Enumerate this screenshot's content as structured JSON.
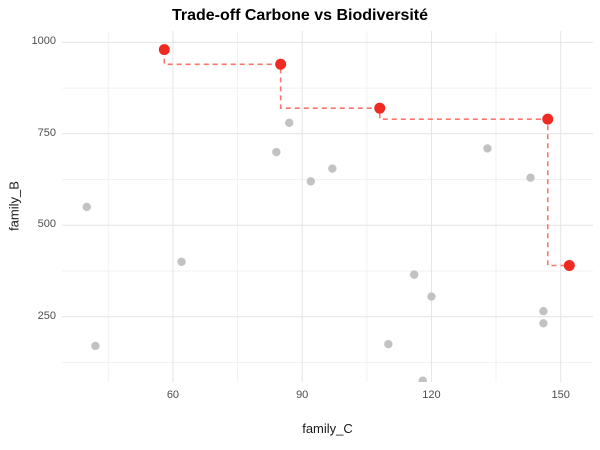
{
  "chart_data": {
    "type": "scatter",
    "title": "Trade-off Carbone vs Biodiversité",
    "xlabel": "family_C",
    "ylabel": "family_B",
    "xlim": [
      34.25,
      157.5
    ],
    "ylim": [
      71.5,
      1031
    ],
    "x_ticks": [
      60,
      90,
      120,
      150
    ],
    "y_ticks": [
      250,
      500,
      750,
      1000
    ],
    "x_minor_ticks": [
      45,
      75,
      105,
      135
    ],
    "y_minor_ticks": [
      125,
      375,
      625,
      875
    ],
    "grid": "on",
    "legend": "none",
    "colors": {
      "major_grid": "#e4e4e4",
      "minor_grid": "#f1f1f1",
      "gray_point": "#c2c2c2",
      "red_point": "#ee2a22",
      "step_line": "#fb766c",
      "axis_text": "#4d4d4d",
      "axis_title": "#1a1a1a",
      "title": "#000000"
    },
    "series": [
      {
        "name": "dominated_points",
        "color": "#c2c2c2",
        "marker_radius": 4.2,
        "points": [
          {
            "x": 40,
            "y": 550
          },
          {
            "x": 42,
            "y": 170
          },
          {
            "x": 62,
            "y": 400
          },
          {
            "x": 84,
            "y": 700
          },
          {
            "x": 87,
            "y": 780
          },
          {
            "x": 92,
            "y": 620
          },
          {
            "x": 97,
            "y": 655
          },
          {
            "x": 110,
            "y": 175
          },
          {
            "x": 116,
            "y": 365
          },
          {
            "x": 118,
            "y": 75
          },
          {
            "x": 120,
            "y": 305
          },
          {
            "x": 133,
            "y": 710
          },
          {
            "x": 143,
            "y": 630
          },
          {
            "x": 146,
            "y": 265
          },
          {
            "x": 146,
            "y": 232
          }
        ]
      },
      {
        "name": "pareto_front",
        "color": "#ee2a22",
        "marker_radius": 5.5,
        "line_style": "dashed",
        "step_direction": "vh",
        "points": [
          {
            "x": 58,
            "y": 980
          },
          {
            "x": 85,
            "y": 940
          },
          {
            "x": 108,
            "y": 820
          },
          {
            "x": 147,
            "y": 790
          },
          {
            "x": 152,
            "y": 390
          }
        ]
      }
    ]
  }
}
